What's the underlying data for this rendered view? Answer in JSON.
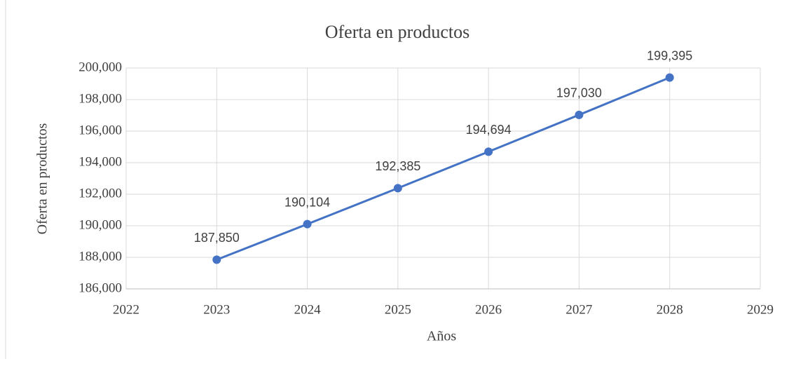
{
  "chart_data": {
    "type": "line",
    "title": "Oferta en productos",
    "x_label": "Años",
    "y_label": "Oferta en productos",
    "x": [
      2023,
      2024,
      2025,
      2026,
      2027,
      2028
    ],
    "series": [
      {
        "name": "Oferta en productos",
        "color": "#4472c4",
        "values": [
          187850,
          190104,
          192385,
          194694,
          197030,
          199395
        ],
        "value_labels": [
          "187,850",
          "190,104",
          "192,385",
          "194,694",
          "197,030",
          "199,395"
        ]
      }
    ],
    "xlim": [
      2022,
      2029
    ],
    "xticks": [
      2022,
      2023,
      2024,
      2025,
      2026,
      2027,
      2028,
      2029
    ],
    "ylim": [
      186000,
      200000
    ],
    "yticks": [
      {
        "value": 186000,
        "label": "186,000"
      },
      {
        "value": 188000,
        "label": "188,000"
      },
      {
        "value": 190000,
        "label": "190,000"
      },
      {
        "value": 192000,
        "label": "192,000"
      },
      {
        "value": 194000,
        "label": "194,000"
      },
      {
        "value": 196000,
        "label": "196,000"
      },
      {
        "value": 198000,
        "label": "198,000"
      },
      {
        "value": 200000,
        "label": "200,000"
      }
    ],
    "grid": true
  }
}
